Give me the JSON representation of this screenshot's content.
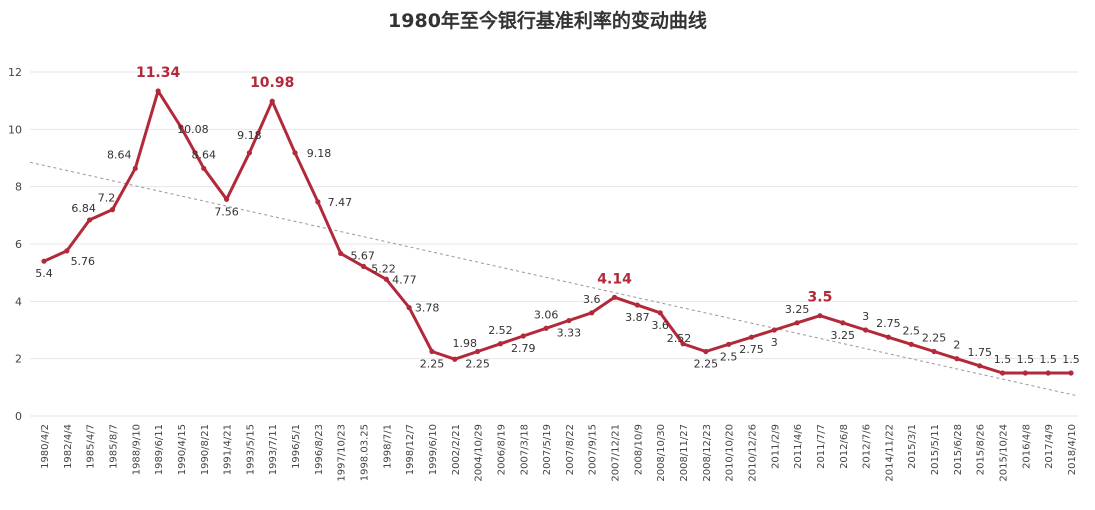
{
  "chart_data": {
    "type": "line",
    "title": "1980年至今银行基准利率的变动曲线",
    "xlabel": "",
    "ylabel": "",
    "ylim": [
      0,
      12
    ],
    "yticks": [
      0,
      2,
      4,
      6,
      8,
      10,
      12
    ],
    "grid": true,
    "legend": "none",
    "colors": {
      "line": "#b22a3a",
      "trend": "#999999",
      "grid": "#e6e6e6",
      "highlight": "#b22a3a"
    },
    "x": [
      "1980/4/2",
      "1982/4/4",
      "1985/4/7",
      "1985/8/7",
      "1988/9/10",
      "1989/6/11",
      "1990/4/15",
      "1990/8/21",
      "1991/4/21",
      "1993/5/15",
      "1993/7/11",
      "1996/5/1",
      "1996/8/23",
      "1997/10/23",
      "1998.03.25",
      "1998/7/1",
      "1998/12/7",
      "1999/6/10",
      "2002/2/21",
      "2004/10/29",
      "2006/8/19",
      "2007/3/18",
      "2007/5/19",
      "2007/8/22",
      "2007/9/15",
      "2007/12/21",
      "2008/10/9",
      "2008/10/30",
      "2008/11/27",
      "2008/12/23",
      "2010/10/20",
      "2010/12/26",
      "2011/2/9",
      "2011/4/6",
      "2011/7/7",
      "2012/6/8",
      "2012/7/6",
      "2014/11/22",
      "2015/3/1",
      "2015/5/11",
      "2015/6/28",
      "2015/8/26",
      "2015/10/24",
      "2016/4/8",
      "2017/4/9",
      "2018/4/10"
    ],
    "series": [
      {
        "values": [
          5.4,
          5.76,
          6.84,
          7.2,
          8.64,
          11.34,
          10.08,
          8.64,
          7.56,
          9.18,
          10.98,
          9.18,
          7.47,
          5.67,
          5.22,
          4.77,
          3.78,
          2.25,
          1.98,
          2.25,
          2.52,
          2.79,
          3.06,
          3.33,
          3.6,
          4.14,
          3.87,
          3.6,
          2.52,
          2.25,
          2.5,
          2.75,
          3,
          3.25,
          3.5,
          3.25,
          3,
          2.75,
          2.5,
          2.25,
          2,
          1.75,
          1.5,
          1.5,
          1.5,
          1.5
        ],
        "labels": [
          "5.4",
          "5.76",
          "6.84",
          "7.2",
          "8.64",
          "11.34",
          "10.08",
          "8.64",
          "7.56",
          "9.18",
          "10.98",
          "9.18",
          "7.47",
          "5.67",
          "5.22",
          "4.77",
          "3.78",
          "2.25",
          "1.98",
          "2.25",
          "2.52",
          "2.79",
          "3.06",
          "3.33",
          "3.6",
          "4.14",
          "3.87",
          "3.6",
          "2.52",
          "2.25",
          "2.5",
          "2.75",
          "3",
          "3.25",
          "3.5",
          "3.25",
          "3",
          "2.75",
          "2.5",
          "2.25",
          "2",
          "1.75",
          "1.5",
          "1.5",
          "1.5",
          "1.5"
        ]
      }
    ],
    "trendline": {
      "type": "linear",
      "start_value": 8.85,
      "end_value": 0.7
    }
  }
}
